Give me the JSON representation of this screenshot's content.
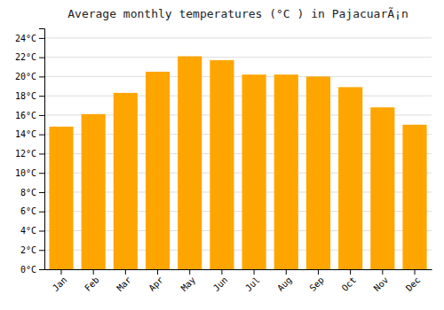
{
  "chart_data": {
    "type": "bar",
    "title": "Average monthly temperatures (°C ) in PajacuarÃ¡n",
    "categories": [
      "Jan",
      "Feb",
      "Mar",
      "Apr",
      "May",
      "Jun",
      "Jul",
      "Aug",
      "Sep",
      "Oct",
      "Nov",
      "Dec"
    ],
    "values": [
      14.8,
      16.1,
      18.3,
      20.5,
      22.1,
      21.7,
      20.2,
      20.2,
      20.0,
      18.9,
      16.8,
      15.0
    ],
    "color": "#FFA500",
    "ylim": [
      0,
      25
    ],
    "yticks": [
      {
        "value": 0,
        "label": "0°C"
      },
      {
        "value": 2,
        "label": "2°C"
      },
      {
        "value": 4,
        "label": "4°C"
      },
      {
        "value": 6,
        "label": "6°C"
      },
      {
        "value": 8,
        "label": "8°C"
      },
      {
        "value": 10,
        "label": "10°C"
      },
      {
        "value": 12,
        "label": "12°C"
      },
      {
        "value": 14,
        "label": "14°C"
      },
      {
        "value": 16,
        "label": "16°C"
      },
      {
        "value": 18,
        "label": "18°C"
      },
      {
        "value": 20,
        "label": "20°C"
      },
      {
        "value": 22,
        "label": "22°C"
      },
      {
        "value": 24,
        "label": "24°C"
      }
    ],
    "grid": true
  }
}
